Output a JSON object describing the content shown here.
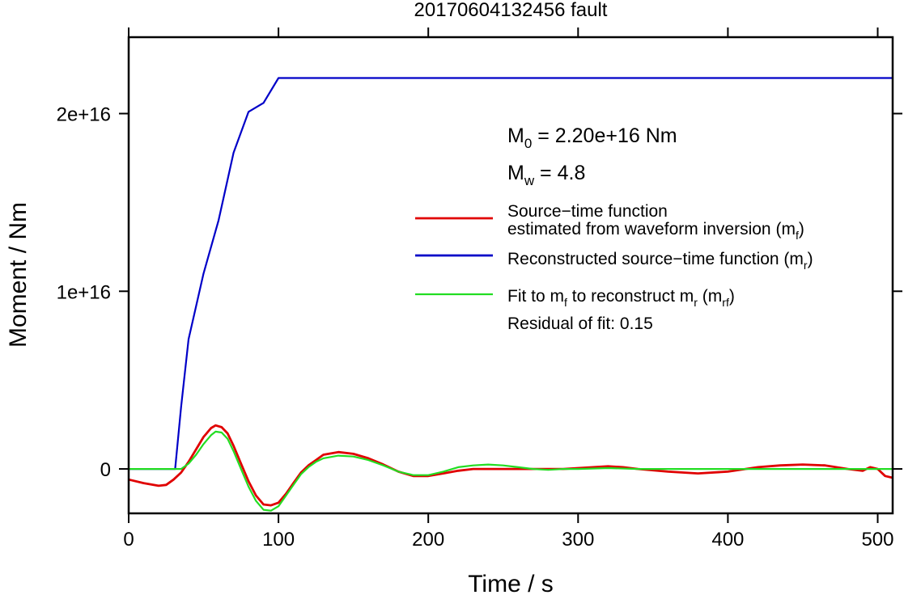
{
  "chart_data": {
    "type": "line",
    "title": "20170604132456 fault",
    "xlabel": "Time / s",
    "ylabel": "Moment / Nm",
    "xlim": [
      0,
      510
    ],
    "ylim": [
      -2500000000000000.0,
      2.43e+16
    ],
    "xticks": [
      0,
      100,
      200,
      300,
      400,
      500
    ],
    "xtick_labels": [
      "0",
      "100",
      "200",
      "300",
      "400",
      "500"
    ],
    "yticks": [
      0,
      1e+16,
      2e+16
    ],
    "ytick_labels": [
      "0",
      "1e+16",
      "2e+16"
    ],
    "grid": false,
    "legend_position": "right",
    "annotations": {
      "m0": {
        "prefix": "M",
        "sub": "0",
        "rest": " = 2.20e+16 Nm"
      },
      "mw": {
        "prefix": "M",
        "sub": "w",
        "rest": " = 4.8"
      },
      "residual": "Residual of fit: 0.15"
    },
    "legend": [
      {
        "color": "#e00000",
        "lines": [
          {
            "parts": [
              {
                "t": "Source−time function"
              }
            ]
          },
          {
            "parts": [
              {
                "t": "estimated from waveform inversion (m"
              },
              {
                "t": "f",
                "sub": true
              },
              {
                "t": ")"
              }
            ]
          }
        ]
      },
      {
        "color": "#0000c8",
        "lines": [
          {
            "parts": [
              {
                "t": "Reconstructed source−time function (m"
              },
              {
                "t": "r",
                "sub": true
              },
              {
                "t": ")"
              }
            ]
          }
        ]
      },
      {
        "color": "#22dd22",
        "lines": [
          {
            "parts": [
              {
                "t": "Fit to m"
              },
              {
                "t": "f",
                "sub": true
              },
              {
                "t": " to reconstruct m"
              },
              {
                "t": "r",
                "sub": true
              },
              {
                "t": " (m"
              },
              {
                "t": "rf",
                "sub": true
              },
              {
                "t": ")"
              }
            ]
          }
        ]
      }
    ],
    "series": [
      {
        "color": "#0000c8",
        "points": [
          [
            0,
            0
          ],
          [
            31,
            0
          ],
          [
            35,
            3500000000000000.0
          ],
          [
            40,
            7300000000000000.0
          ],
          [
            50,
            1.1e+16
          ],
          [
            60,
            1.4e+16
          ],
          [
            70,
            1.78e+16
          ],
          [
            80,
            2.01e+16
          ],
          [
            90,
            2.06e+16
          ],
          [
            100,
            2.2e+16
          ],
          [
            510,
            2.2e+16
          ]
        ]
      },
      {
        "color": "#e00000",
        "points": [
          [
            0,
            -600000000000000.0
          ],
          [
            10,
            -800000000000000.0
          ],
          [
            20,
            -950000000000000.0
          ],
          [
            25,
            -900000000000000.0
          ],
          [
            30,
            -600000000000000.0
          ],
          [
            35,
            -200000000000000.0
          ],
          [
            40,
            400000000000000.0
          ],
          [
            45,
            1100000000000000.0
          ],
          [
            50,
            1800000000000000.0
          ],
          [
            55,
            2300000000000000.0
          ],
          [
            58,
            2450000000000000.0
          ],
          [
            62,
            2350000000000000.0
          ],
          [
            66,
            2000000000000000.0
          ],
          [
            70,
            1300000000000000.0
          ],
          [
            75,
            300000000000000.0
          ],
          [
            80,
            -700000000000000.0
          ],
          [
            85,
            -1500000000000000.0
          ],
          [
            90,
            -2000000000000000.0
          ],
          [
            95,
            -2050000000000000.0
          ],
          [
            100,
            -1900000000000000.0
          ],
          [
            105,
            -1400000000000000.0
          ],
          [
            110,
            -800000000000000.0
          ],
          [
            115,
            -200000000000000.0
          ],
          [
            120,
            200000000000000.0
          ],
          [
            125,
            500000000000000.0
          ],
          [
            130,
            800000000000000.0
          ],
          [
            140,
            950000000000000.0
          ],
          [
            150,
            850000000000000.0
          ],
          [
            160,
            600000000000000.0
          ],
          [
            170,
            250000000000000.0
          ],
          [
            180,
            -150000000000000.0
          ],
          [
            190,
            -400000000000000.0
          ],
          [
            200,
            -400000000000000.0
          ],
          [
            210,
            -250000000000000.0
          ],
          [
            220,
            -100000000000000.0
          ],
          [
            230,
            0
          ],
          [
            250,
            0
          ],
          [
            270,
            0
          ],
          [
            290,
            0
          ],
          [
            310,
            100000000000000.0
          ],
          [
            320,
            150000000000000.0
          ],
          [
            330,
            100000000000000.0
          ],
          [
            340,
            0
          ],
          [
            360,
            -150000000000000.0
          ],
          [
            380,
            -250000000000000.0
          ],
          [
            400,
            -150000000000000.0
          ],
          [
            420,
            100000000000000.0
          ],
          [
            435,
            200000000000000.0
          ],
          [
            450,
            250000000000000.0
          ],
          [
            465,
            200000000000000.0
          ],
          [
            480,
            0
          ],
          [
            490,
            -100000000000000.0
          ],
          [
            495,
            100000000000000.0
          ],
          [
            500,
            0
          ],
          [
            505,
            -400000000000000.0
          ],
          [
            510,
            -500000000000000.0
          ]
        ]
      },
      {
        "color": "#22dd22",
        "points": [
          [
            0,
            0
          ],
          [
            30,
            0
          ],
          [
            35,
            0
          ],
          [
            40,
            300000000000000.0
          ],
          [
            45,
            800000000000000.0
          ],
          [
            50,
            1400000000000000.0
          ],
          [
            55,
            1900000000000000.0
          ],
          [
            58,
            2100000000000000.0
          ],
          [
            62,
            2050000000000000.0
          ],
          [
            66,
            1700000000000000.0
          ],
          [
            70,
            1000000000000000.0
          ],
          [
            75,
            0
          ],
          [
            80,
            -1000000000000000.0
          ],
          [
            85,
            -1800000000000000.0
          ],
          [
            90,
            -2300000000000000.0
          ],
          [
            95,
            -2350000000000000.0
          ],
          [
            100,
            -2100000000000000.0
          ],
          [
            105,
            -1500000000000000.0
          ],
          [
            110,
            -900000000000000.0
          ],
          [
            115,
            -300000000000000.0
          ],
          [
            120,
            100000000000000.0
          ],
          [
            125,
            400000000000000.0
          ],
          [
            130,
            600000000000000.0
          ],
          [
            140,
            750000000000000.0
          ],
          [
            150,
            700000000000000.0
          ],
          [
            160,
            500000000000000.0
          ],
          [
            170,
            200000000000000.0
          ],
          [
            180,
            -150000000000000.0
          ],
          [
            190,
            -350000000000000.0
          ],
          [
            200,
            -350000000000000.0
          ],
          [
            210,
            -150000000000000.0
          ],
          [
            220,
            100000000000000.0
          ],
          [
            230,
            200000000000000.0
          ],
          [
            240,
            250000000000000.0
          ],
          [
            250,
            200000000000000.0
          ],
          [
            260,
            100000000000000.0
          ],
          [
            270,
            0
          ],
          [
            280,
            -50000000000000.0
          ],
          [
            290,
            0
          ],
          [
            300,
            0
          ],
          [
            320,
            50000000000000.0
          ],
          [
            340,
            0
          ],
          [
            360,
            0
          ],
          [
            400,
            0
          ],
          [
            450,
            0
          ],
          [
            500,
            0
          ],
          [
            510,
            0
          ]
        ]
      }
    ]
  }
}
